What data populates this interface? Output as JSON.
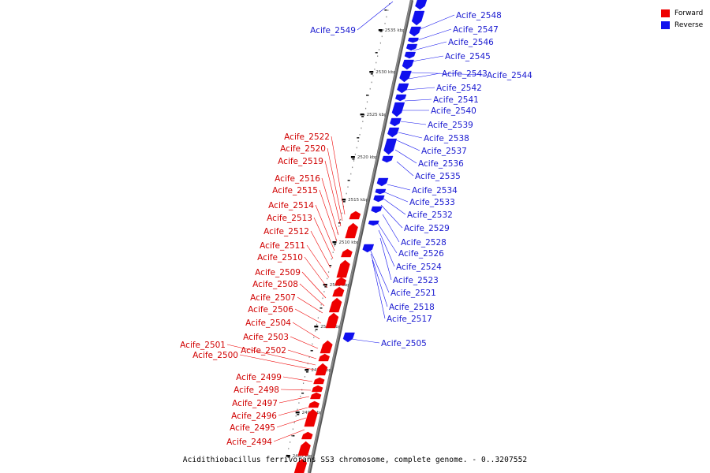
{
  "caption": "Acidithiobacillus ferrivorans SS3 chromosome, complete genome. - 0..3207552",
  "legend": {
    "forward": {
      "label": "Forward",
      "color": "#ee0000"
    },
    "reverse": {
      "label": "Reverse",
      "color": "#1010ee"
    }
  },
  "backbone_color": "#888888",
  "ticks": [
    "2485 kbp",
    "2490 kbp",
    "2495 kbp",
    "2500 kbp",
    "2505 kbp",
    "2510 kbp",
    "2515 kbp",
    "2520 kbp",
    "2525 kbp",
    "2530 kbp",
    "2535 kbp"
  ],
  "forward_genes": [
    "Acife_2494",
    "Acife_2495",
    "Acife_2496",
    "Acife_2497",
    "Acife_2498",
    "Acife_2499",
    "Acife_2500",
    "Acife_2501",
    "Acife_2502",
    "Acife_2503",
    "Acife_2504",
    "Acife_2506",
    "Acife_2507",
    "Acife_2508",
    "Acife_2509",
    "Acife_2510",
    "Acife_2511",
    "Acife_2512",
    "Acife_2513",
    "Acife_2514",
    "Acife_2515",
    "Acife_2516",
    "Acife_2519",
    "Acife_2520",
    "Acife_2522"
  ],
  "reverse_genes": [
    "Acife_2505",
    "Acife_2517",
    "Acife_2518",
    "Acife_2521",
    "Acife_2523",
    "Acife_2524",
    "Acife_2526",
    "Acife_2528",
    "Acife_2529",
    "Acife_2532",
    "Acife_2533",
    "Acife_2534",
    "Acife_2535",
    "Acife_2536",
    "Acife_2537",
    "Acife_2538",
    "Acife_2539",
    "Acife_2540",
    "Acife_2541",
    "Acife_2542",
    "Acife_2543",
    "Acife_2544",
    "Acife_2545",
    "Acife_2546",
    "Acife_2547",
    "Acife_2548",
    "Acife_2549"
  ]
}
